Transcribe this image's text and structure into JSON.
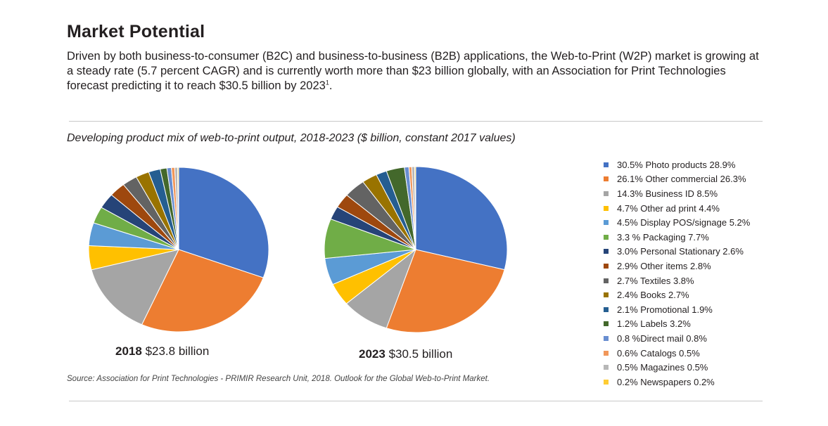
{
  "header": {
    "title": "Market Potential",
    "intro": "Driven by both business-to-consumer (B2C) and business-to-business (B2B) applications, the Web-to-Print (W2P) market is growing at a steady rate (5.7 percent CAGR) and is currently worth more than $23 billion globally, with an Association for Print Technologies forecast predicting it to reach $30.5 billion by 2023",
    "footnote_ref": "1",
    "intro_end": "."
  },
  "chart_data": {
    "type": "pie",
    "title": "Developing product mix of web-to-print output, 2018-2023 ($ billion, constant 2017 values)",
    "categories": [
      "Photo products",
      "Other commercial",
      "Business ID",
      "Other ad print",
      "Display POS/signage",
      "Packaging",
      "Personal Stationary",
      "Other items",
      "Textiles",
      "Books",
      "Promotional",
      "Labels",
      "Direct mail",
      "Catalogs",
      "Magazines",
      "Newspapers"
    ],
    "colors": [
      "#4472c4",
      "#ed7d31",
      "#a5a5a5",
      "#ffc000",
      "#5b9bd5",
      "#70ad47",
      "#264478",
      "#9e480e",
      "#636363",
      "#997300",
      "#255e91",
      "#43682b",
      "#698ed0",
      "#f1975a",
      "#b7b7b7",
      "#ffcd33"
    ],
    "series": [
      {
        "name": "2018",
        "label_year": "2018",
        "label_value": "$23.8 billion",
        "values": [
          30.5,
          26.1,
          14.3,
          4.7,
          4.5,
          3.3,
          3.0,
          2.9,
          2.7,
          2.4,
          2.1,
          1.2,
          0.8,
          0.6,
          0.5,
          0.2
        ]
      },
      {
        "name": "2023",
        "label_year": "2023",
        "label_value": "$30.5 billion",
        "values": [
          28.9,
          26.3,
          8.5,
          4.4,
          5.2,
          7.7,
          2.6,
          2.8,
          3.8,
          2.7,
          1.9,
          3.2,
          0.8,
          0.5,
          0.5,
          0.2
        ]
      }
    ],
    "legend_labels": [
      "30.5% Photo products 28.9%",
      "26.1% Other commercial 26.3%",
      "14.3% Business ID 8.5%",
      "4.7% Other ad print 4.4%",
      "4.5% Display POS/signage 5.2%",
      "3.3 % Packaging 7.7%",
      "3.0% Personal Stationary 2.6%",
      "2.9% Other items 2.8%",
      "2.7% Textiles 3.8%",
      "2.4% Books 2.7%",
      "2.1% Promotional 1.9%",
      "1.2% Labels 3.2%",
      "0.8 %Direct mail 0.8%",
      "0.6% Catalogs 0.5%",
      "0.5% Magazines 0.5%",
      "0.2% Newspapers 0.2%"
    ],
    "legend_position": "right",
    "source": "Source: Association for Print Technologies - PRIMIR Research Unit, 2018. Outlook for the Global Web-to-Print Market."
  }
}
